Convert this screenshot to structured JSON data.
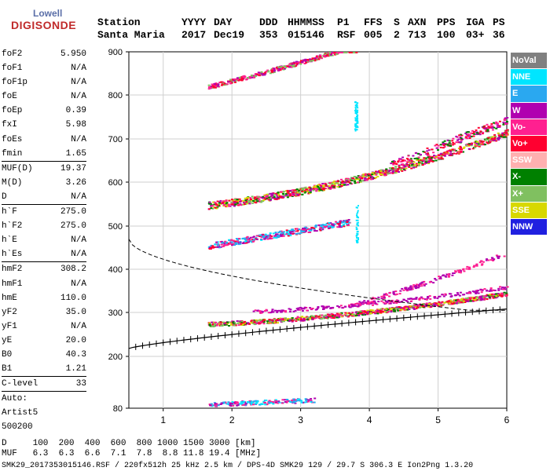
{
  "logo": {
    "line1": "Lowell",
    "line2": "DIGISONDE"
  },
  "header": {
    "line1": [
      {
        "text": "Station",
        "x": 124
      },
      {
        "text": "YYYY",
        "x": 231
      },
      {
        "text": "DAY",
        "x": 272
      },
      {
        "text": "DDD",
        "x": 330
      },
      {
        "text": "HHMMSS",
        "x": 366
      },
      {
        "text": "P1",
        "x": 429
      },
      {
        "text": "FFS",
        "x": 463
      },
      {
        "text": "S",
        "x": 501
      },
      {
        "text": "AXN",
        "x": 519
      },
      {
        "text": "PPS",
        "x": 556
      },
      {
        "text": "IGA",
        "x": 593
      },
      {
        "text": "PS",
        "x": 627
      }
    ],
    "line2": [
      {
        "text": "Santa Maria",
        "x": 124
      },
      {
        "text": "2017",
        "x": 231
      },
      {
        "text": "Dec19",
        "x": 272
      },
      {
        "text": "353",
        "x": 330
      },
      {
        "text": "015146",
        "x": 366
      },
      {
        "text": "RSF",
        "x": 429
      },
      {
        "text": "005",
        "x": 463
      },
      {
        "text": "2",
        "x": 501
      },
      {
        "text": "713",
        "x": 519
      },
      {
        "text": "100",
        "x": 556
      },
      {
        "text": "03+",
        "x": 593
      },
      {
        "text": "36",
        "x": 627
      }
    ]
  },
  "params": {
    "group1": [
      {
        "name": "foF2",
        "value": "5.950"
      },
      {
        "name": "foF1",
        "value": "N/A"
      },
      {
        "name": "foF1p",
        "value": "N/A"
      },
      {
        "name": "foE",
        "value": "N/A"
      },
      {
        "name": "foEp",
        "value": "0.39"
      },
      {
        "name": "fxI",
        "value": "5.98"
      },
      {
        "name": "foEs",
        "value": "N/A"
      },
      {
        "name": "fmin",
        "value": "1.65"
      }
    ],
    "group2": [
      {
        "name": "MUF(D)",
        "value": "19.37"
      },
      {
        "name": "M(D)",
        "value": "3.26"
      },
      {
        "name": "D",
        "value": "N/A"
      }
    ],
    "group3": [
      {
        "name": "h`F",
        "value": "275.0"
      },
      {
        "name": "h`F2",
        "value": "275.0"
      },
      {
        "name": "h`E",
        "value": "N/A"
      },
      {
        "name": "h`Es",
        "value": "N/A"
      }
    ],
    "group4": [
      {
        "name": "hmF2",
        "value": "308.2"
      },
      {
        "name": "hmF1",
        "value": "N/A"
      },
      {
        "name": "hmE",
        "value": "110.0"
      },
      {
        "name": "yF2",
        "value": "35.0"
      },
      {
        "name": "yF1",
        "value": "N/A"
      },
      {
        "name": "yE",
        "value": "20.0"
      },
      {
        "name": "B0",
        "value": "40.3"
      },
      {
        "name": "B1",
        "value": "1.21"
      }
    ],
    "group5": [
      {
        "name": "C-level",
        "value": "33"
      }
    ],
    "auto": [
      "Auto:",
      "Artist5",
      "500200"
    ]
  },
  "legend": [
    {
      "label": "NoVal",
      "color": "#808080"
    },
    {
      "label": "NNE",
      "color": "#00e5ff"
    },
    {
      "label": "E",
      "color": "#2aa8f0"
    },
    {
      "label": "W",
      "color": "#b000b0"
    },
    {
      "label": "Vo-",
      "color": "#ff2090"
    },
    {
      "label": "Vo+",
      "color": "#ff0030"
    },
    {
      "label": "SSW",
      "color": "#ffb0b0"
    },
    {
      "label": "X-",
      "color": "#008000"
    },
    {
      "label": "X+",
      "color": "#80c060"
    },
    {
      "label": "SSE",
      "color": "#d8d800"
    },
    {
      "label": "NNW",
      "color": "#2020e0"
    }
  ],
  "axes": {
    "x_ticks": [
      "1",
      "2",
      "3",
      "4",
      "5",
      "6"
    ],
    "y_ticks": [
      "900",
      "800",
      "700",
      "600",
      "500",
      "400",
      "300",
      "200",
      "80"
    ]
  },
  "footer": {
    "line1": "D     100  200  400  600  800 1000 1500 3000 [km]",
    "line2": "MUF   6.3  6.3  6.6  7.1  7.8  8.8 11.8 19.4 [MHz]",
    "line3": "SMK29_2017353015146.RSF / 220fx512h 25 kHz 2.5 km / DPS-4D SMK29 129 / 29.7 S 306.3 E Ion2Png 1.3.20"
  }
}
